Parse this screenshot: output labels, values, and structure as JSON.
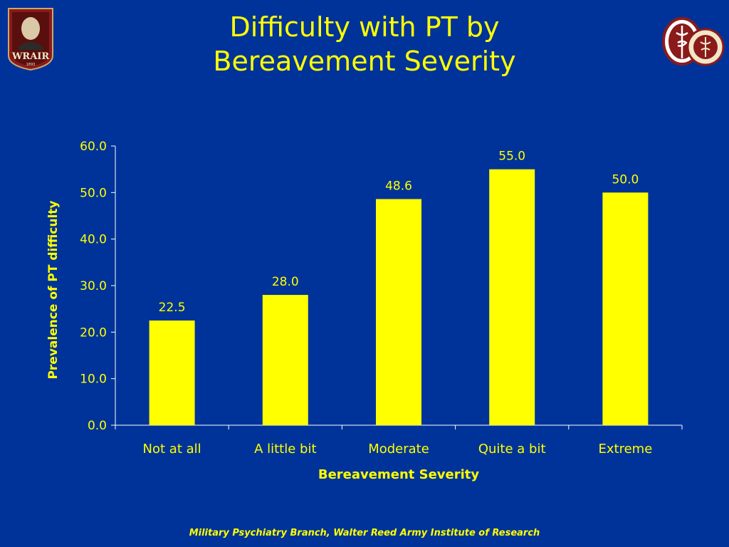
{
  "slide": {
    "title_line1": "Difficulty with PT by",
    "title_line2": "Bereavement Severity",
    "footer": "Military Psychiatry Branch, Walter Reed Army Institute of Research",
    "logo_left_text": "WRAIR",
    "logo_left_year": "1893",
    "colors": {
      "background": "#003399",
      "accent": "#ffff00",
      "axis": "#ffffff",
      "logo_maroon": "#8b1a1a"
    }
  },
  "chart_data": {
    "type": "bar",
    "categories": [
      "Not at all",
      "A little bit",
      "Moderate",
      "Quite a bit",
      "Extreme"
    ],
    "values": [
      22.5,
      28.0,
      48.6,
      55.0,
      50.0
    ],
    "value_labels": [
      "22.5",
      "28.0",
      "48.6",
      "55.0",
      "50.0"
    ],
    "xlabel": "Bereavement Severity",
    "ylabel": "Prevalence of PT difficulty",
    "ylim": [
      0,
      60
    ],
    "yticks": [
      "0.0",
      "10.0",
      "20.0",
      "30.0",
      "40.0",
      "50.0",
      "60.0"
    ],
    "ytick_values": [
      0,
      10,
      20,
      30,
      40,
      50,
      60
    ],
    "bar_color": "#ffff00",
    "grid": false,
    "legend": "none"
  }
}
